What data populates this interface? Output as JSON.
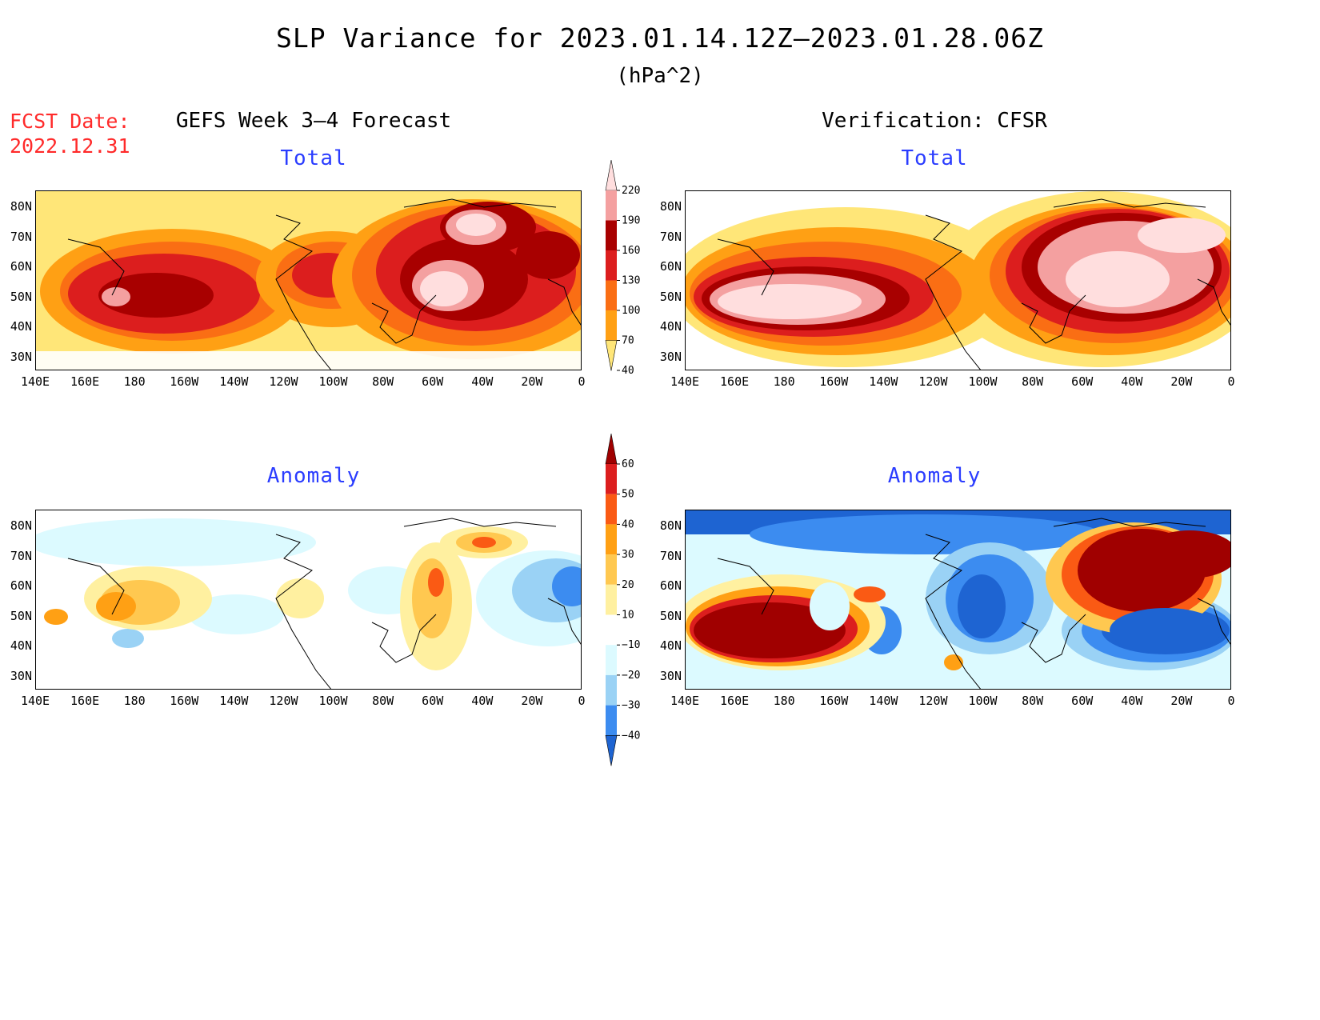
{
  "title": "SLP Variance for 2023.01.14.12Z—2023.01.28.06Z",
  "units": "(hPa^2)",
  "fcst_label": "FCST Date:",
  "fcst_date": "2022.12.31",
  "left_title": "GEFS Week 3—4 Forecast",
  "right_title": "Verification: CFSR",
  "panels": [
    {
      "id": "gefs-total",
      "label": "Total"
    },
    {
      "id": "cfsr-total",
      "label": "Total"
    },
    {
      "id": "gefs-anomaly",
      "label": "Anomaly"
    },
    {
      "id": "cfsr-anomaly",
      "label": "Anomaly"
    }
  ],
  "lat_labels": [
    "80N",
    "70N",
    "60N",
    "50N",
    "40N",
    "30N"
  ],
  "lon_labels": [
    "140E",
    "160E",
    "180",
    "160W",
    "140W",
    "120W",
    "100W",
    "80W",
    "60W",
    "40W",
    "20W",
    "0"
  ],
  "total_colorbar": {
    "levels": [
      "220",
      "190",
      "160",
      "130",
      "100",
      "70",
      "40"
    ],
    "colors": [
      "#ffdede",
      "#f4a0a0",
      "#a80000",
      "#dc1e1e",
      "#fa6e14",
      "#ffa014",
      "#ffe678"
    ]
  },
  "anomaly_colorbar": {
    "levels": [
      "60",
      "50",
      "40",
      "30",
      "20",
      "10",
      "−10",
      "−20",
      "−30",
      "−40"
    ],
    "colors": [
      "#a00000",
      "#dc1e1e",
      "#fa5a14",
      "#ffa014",
      "#ffc850",
      "#fff0a0",
      "#ffffff",
      "#dcfaff",
      "#9ad2f5",
      "#3c8cf0",
      "#1e64d2"
    ]
  }
}
